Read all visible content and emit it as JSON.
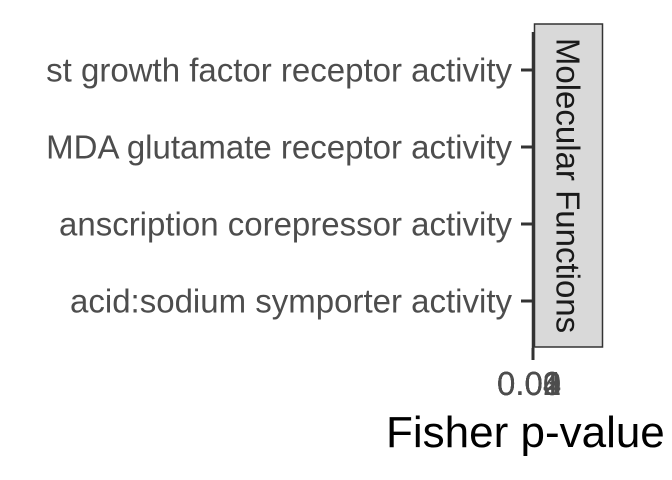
{
  "chart_data": {
    "type": "bar",
    "orientation": "horizontal",
    "facet_label": "Molecular Functions",
    "categories": [
      "st growth factor receptor activity",
      "MDA glutamate receptor activity",
      "anscription corepressor activity",
      "acid:sodium symporter activity"
    ],
    "values": [
      0,
      0,
      0,
      0
    ],
    "xlabel": "Fisher p-value",
    "ylabel": "",
    "x_tick_labels": [
      "0.00",
      "0.01",
      "0.02",
      "0.03",
      "0.04"
    ],
    "xlim": [
      0,
      0.04
    ],
    "grid": false,
    "colors": {
      "axis": "#333333",
      "label_text": "#4d4d4d",
      "strip_fill": "#d9d9d9",
      "strip_border": "#333333"
    }
  }
}
